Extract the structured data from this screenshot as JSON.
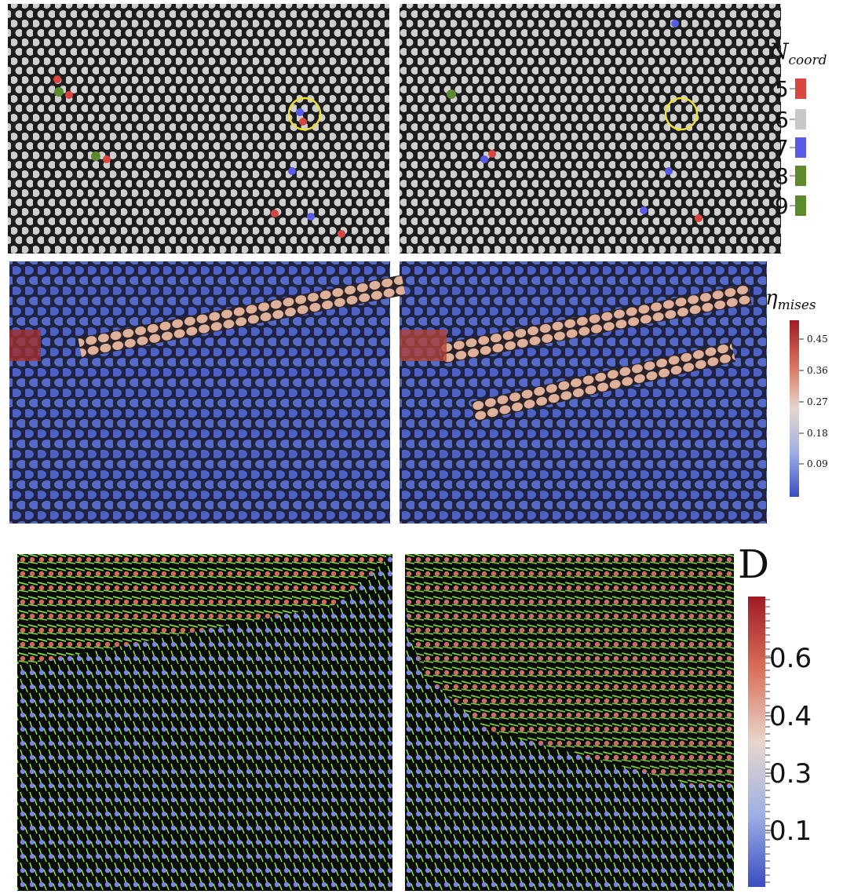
{
  "coordination_legend": {
    "symbol": "N",
    "subscript": "coord",
    "items": [
      {
        "label": 5,
        "color": "#d9453f"
      },
      {
        "label": 6,
        "color": "#c8c8c8"
      },
      {
        "label": 7,
        "color": "#5a5ae8"
      },
      {
        "label": 8,
        "color": "#5e8a2e"
      },
      {
        "label": 9,
        "color": "#5e8a2e"
      }
    ]
  },
  "mises_colorbar": {
    "symbol": "η",
    "subscript": "mises",
    "ticks": [
      0.45,
      0.36,
      0.27,
      0.18,
      0.09
    ]
  },
  "d_colorbar": {
    "symbol": "D",
    "ticks": [
      0.6,
      0.4,
      0.3,
      0.1
    ]
  }
}
